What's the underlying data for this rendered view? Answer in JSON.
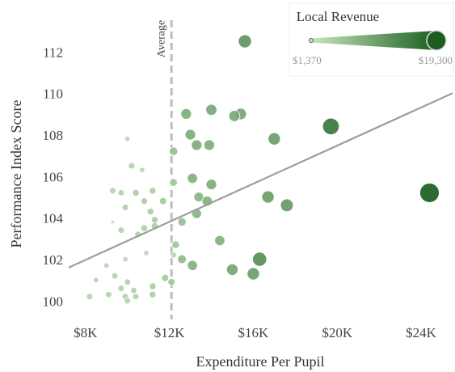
{
  "chart_data": {
    "type": "bubble",
    "x_label": "Expenditure Per Pupil",
    "y_label": "Performance Index Score",
    "xlim": [
      7200,
      25500
    ],
    "ylim": [
      99.2,
      114.2
    ],
    "xticks": [
      {
        "value": 8000,
        "label": "$8K"
      },
      {
        "value": 12000,
        "label": "$12K"
      },
      {
        "value": 16000,
        "label": "$16K"
      },
      {
        "value": 20000,
        "label": "$20K"
      },
      {
        "value": 24000,
        "label": "$24K"
      }
    ],
    "yticks": [
      100,
      102,
      104,
      106,
      108,
      110,
      112
    ],
    "grid": false,
    "color_range": [
      "#c8e6c0",
      "#1b5e20"
    ],
    "x": [
      15600,
      19700,
      24400,
      12800,
      14000,
      15400,
      15100,
      13000,
      13300,
      13900,
      17000,
      12200,
      10000,
      10200,
      10700,
      13100,
      14000,
      12200,
      9300,
      9700,
      10400,
      11200,
      13400,
      13800,
      16700,
      17600,
      10800,
      11700,
      9900,
      11100,
      13300,
      11300,
      12600,
      9300,
      9700,
      10800,
      10500,
      11300,
      14400,
      12300,
      12200,
      10900,
      9900,
      9000,
      12600,
      13100,
      15000,
      16300,
      16000,
      8500,
      9400,
      10000,
      11800,
      12100,
      11200,
      9700,
      10300,
      9100,
      8200,
      9900,
      10400,
      10000,
      11200
    ],
    "values": [
      112.6,
      108.5,
      105.3,
      109.1,
      109.3,
      109.1,
      109.0,
      108.1,
      107.6,
      107.6,
      107.9,
      107.3,
      107.9,
      106.6,
      106.4,
      106.0,
      105.7,
      105.8,
      105.4,
      105.3,
      105.3,
      105.4,
      105.1,
      104.9,
      105.1,
      104.7,
      104.9,
      104.9,
      104.6,
      104.4,
      104.3,
      104.0,
      103.9,
      103.9,
      103.5,
      103.6,
      103.3,
      103.7,
      103.0,
      102.8,
      102.3,
      102.4,
      102.1,
      101.8,
      102.1,
      101.8,
      101.6,
      102.1,
      101.4,
      101.1,
      101.3,
      101.0,
      101.2,
      101.0,
      100.8,
      100.7,
      100.6,
      100.4,
      100.3,
      100.3,
      100.3,
      100.1,
      100.4
    ],
    "sizes": [
      12000,
      16000,
      19300,
      9000,
      9500,
      10000,
      9500,
      9000,
      9000,
      9000,
      11000,
      6500,
      3000,
      4000,
      3000,
      8500,
      9000,
      5500,
      4000,
      4000,
      4500,
      4500,
      8000,
      8500,
      11000,
      11500,
      4500,
      5000,
      4000,
      4500,
      8000,
      4500,
      6500,
      1370,
      4000,
      4500,
      4000,
      4500,
      8500,
      5500,
      3500,
      3000,
      3000,
      3000,
      7000,
      8500,
      10000,
      13000,
      11000,
      3000,
      4000,
      4000,
      5000,
      5000,
      4500,
      4000,
      4000,
      4000,
      4000,
      4000,
      4000,
      4000,
      4500
    ],
    "trendline": {
      "x": [
        7200,
        25500
      ],
      "values": [
        101.7,
        110.1
      ],
      "color": "#9e9e9e"
    },
    "average": {
      "x": 12100,
      "label": "Average",
      "color": "#bdbdbd"
    },
    "size_legend": {
      "title": "Local Revenue",
      "min": {
        "value": 1370,
        "label": "$1,370"
      },
      "max": {
        "value": 19300,
        "label": "$19,300"
      }
    }
  }
}
